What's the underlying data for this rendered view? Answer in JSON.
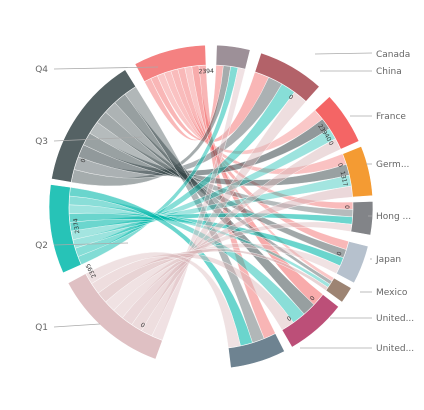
{
  "chart_data": {
    "type": "chord",
    "groups": [
      {
        "name": "Q4",
        "color": "#F26B6B"
      },
      {
        "name": "Q3",
        "color": "#374649"
      },
      {
        "name": "Q2",
        "color": "#01B8AA"
      },
      {
        "name": "Q1",
        "color": "#D9B5B8"
      },
      {
        "name": "Canada",
        "color": "#8C7D86"
      },
      {
        "name": "China",
        "color": "#A6464F"
      },
      {
        "name": "France",
        "color": "#F24A4A"
      },
      {
        "name": "Germ...",
        "color": "#F2890F"
      },
      {
        "name": "Hong ...",
        "color": "#6C6F73"
      },
      {
        "name": "Japan",
        "color": "#A9B6C4"
      },
      {
        "name": "Mexico",
        "color": "#8C6E5B"
      },
      {
        "name": "United...",
        "color": "#B03060"
      },
      {
        "name": "United...",
        "color": "#556D7E"
      }
    ],
    "tick_labels": [
      "2374",
      "0",
      "2395",
      "0",
      "2394",
      "0",
      "2394",
      "0",
      "0",
      "0",
      "1317",
      "0",
      "0",
      "0",
      "0"
    ],
    "palette": [
      "#F26B6B",
      "#374649",
      "#01B8AA",
      "#D9B5B8",
      "#8C7D86",
      "#A6464F",
      "#F24A4A",
      "#F2890F",
      "#6C6F73",
      "#A9B6C4",
      "#8C6E5B",
      "#B03060",
      "#556D7E",
      "#E8C260",
      "#7FBA5B"
    ]
  }
}
